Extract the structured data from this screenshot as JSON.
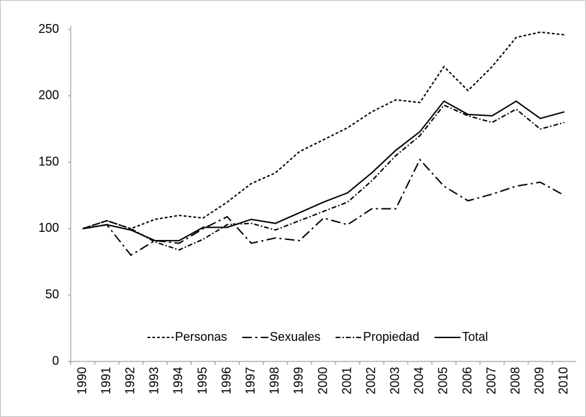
{
  "chart_data": {
    "type": "line",
    "categories": [
      "1990",
      "1991",
      "1992",
      "1993",
      "1994",
      "1995",
      "1996",
      "1997",
      "1998",
      "1999",
      "2000",
      "2001",
      "2002",
      "2003",
      "2004",
      "2005",
      "2006",
      "2007",
      "2008",
      "2009",
      "2010"
    ],
    "series": [
      {
        "name": "Personas",
        "color": "#000000",
        "dash": "4 3",
        "values": [
          100,
          106,
          100,
          107,
          110,
          108,
          120,
          134,
          142,
          158,
          167,
          176,
          188,
          197,
          195,
          222,
          204,
          222,
          244,
          248,
          246
        ]
      },
      {
        "name": "Sexuales",
        "color": "#000000",
        "dash": "14 5 3 5",
        "values": [
          100,
          103,
          80,
          91,
          89,
          100,
          109,
          89,
          93,
          91,
          108,
          103,
          115,
          115,
          152,
          132,
          121,
          126,
          132,
          135,
          125
        ]
      },
      {
        "name": "Propiedad",
        "color": "#000000",
        "dash": "7 3 2 3",
        "values": [
          100,
          106,
          100,
          90,
          84,
          92,
          103,
          104,
          99,
          106,
          113,
          120,
          136,
          155,
          170,
          193,
          185,
          180,
          190,
          175,
          180
        ]
      },
      {
        "name": "Total",
        "color": "#000000",
        "dash": "none",
        "values": [
          100,
          103,
          99,
          91,
          91,
          101,
          101,
          107,
          104,
          112,
          120,
          127,
          142,
          159,
          173,
          196,
          186,
          185,
          196,
          183,
          188
        ]
      }
    ],
    "ylim": [
      0,
      250
    ],
    "yticks": [
      0,
      50,
      100,
      150,
      200,
      250
    ],
    "grid": false,
    "legend": "bottom"
  }
}
